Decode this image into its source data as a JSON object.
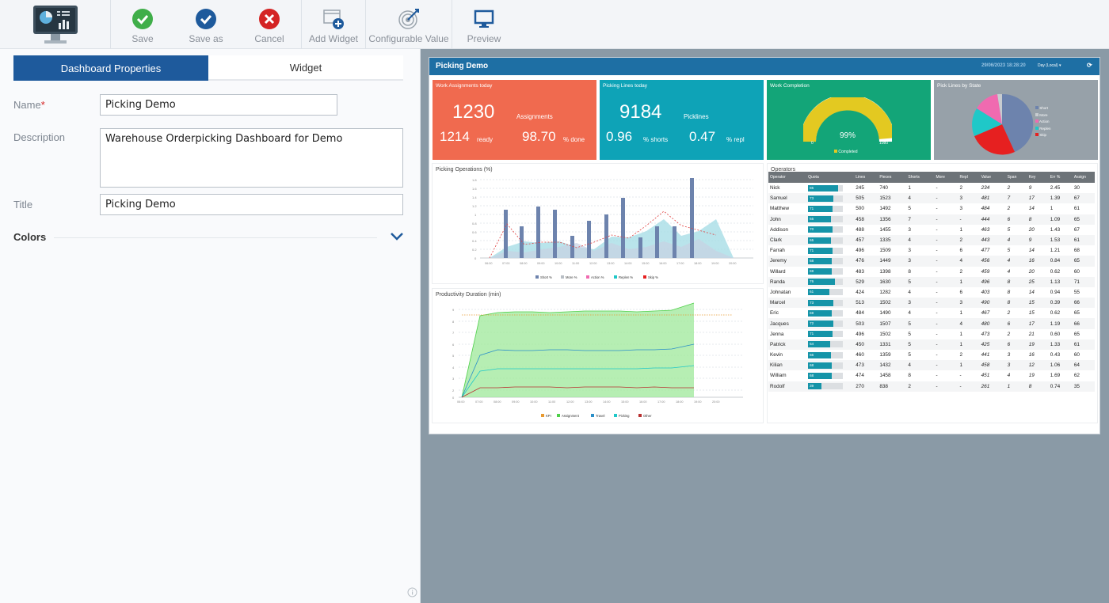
{
  "toolbar": {
    "save_label": "Save",
    "save_as_label": "Save as",
    "cancel_label": "Cancel",
    "add_widget_label": "Add Widget",
    "configurable_value_label": "Configurable Value",
    "preview_label": "Preview"
  },
  "left": {
    "tab_dashboard_properties": "Dashboard Properties",
    "tab_widget": "Widget",
    "name_label": "Name",
    "name_required": "*",
    "name_value": "Picking Demo",
    "description_label": "Description",
    "description_value": "Warehouse Orderpicking Dashboard for Demo",
    "title_label": "Title",
    "title_value": "Picking Demo",
    "colors_label": "Colors"
  },
  "dashboard": {
    "title": "Picking Demo",
    "datetime": "29/06/2023 18:28:20",
    "day_select": "Day (Local)",
    "tiles": {
      "work_assignments": {
        "title": "Work Assignments today",
        "count": "1230",
        "count_label": "Assignments",
        "ready": "1214",
        "ready_label": "ready",
        "done": "98.70",
        "done_label": "% done",
        "color": "#f06a4f"
      },
      "picking_lines": {
        "title": "Picking Lines today",
        "count": "9184",
        "count_label": "Picklines",
        "shorts": "0.96",
        "shorts_label": "% shorts",
        "repl": "0.47",
        "repl_label": "% repl",
        "color": "#0ea3b7"
      },
      "work_completion": {
        "title": "Work Completion",
        "percent": "99%",
        "min": "0",
        "max": "1080",
        "legend": "Completed",
        "color": "#13a578"
      },
      "pick_lines_state": {
        "title": "Pick Lines by State",
        "legend": [
          "Short",
          "More",
          "Action",
          "Replen",
          "Skip"
        ],
        "color": "#97a1a9"
      }
    },
    "picking_ops": {
      "title": "Picking Operations (%)",
      "yticks": [
        "1.8",
        "1.6",
        "1.4",
        "1.2",
        "1",
        "0.8",
        "0.6",
        "0.4",
        "0.2",
        "0"
      ],
      "xticks": [
        "06:00",
        "07:00",
        "08:00",
        "09:00",
        "10:00",
        "11:00",
        "12:00",
        "13:00",
        "14:00",
        "15:00",
        "16:00",
        "17:00",
        "18:00",
        "19:00",
        "20:00"
      ],
      "legend": [
        "Short %",
        "More %",
        "Action %",
        "Replen %",
        "Skip %"
      ]
    },
    "productivity": {
      "title": "Productivity Duration (min)",
      "yticks": [
        "9",
        "8",
        "7",
        "6",
        "5",
        "4",
        "3",
        "2",
        "1",
        "0"
      ],
      "xticks": [
        "06:00",
        "07:00",
        "08:00",
        "09:00",
        "10:00",
        "11:00",
        "12:00",
        "13:00",
        "14:00",
        "15:00",
        "16:00",
        "17:00",
        "18:00",
        "19:00",
        "20:00"
      ],
      "legend": [
        "KPI",
        "Assignment",
        "Travel",
        "Picking",
        "Other"
      ]
    },
    "operators": {
      "title": "Operators",
      "headers": [
        "Operator",
        "Quota",
        "Lines",
        "Pieces",
        "Shorts",
        "More",
        "Repl",
        "Value",
        "Span",
        "Key",
        "Err %",
        "Assign"
      ],
      "rows": [
        [
          "Nick",
          "85",
          "245",
          "740",
          "1",
          "-",
          "2",
          "234",
          "2",
          "9",
          "2.45",
          "30"
        ],
        [
          "Samuel",
          "73",
          "505",
          "1523",
          "4",
          "-",
          "3",
          "481",
          "7",
          "17",
          "1.39",
          "67"
        ],
        [
          "Matthew",
          "71",
          "500",
          "1492",
          "5",
          "-",
          "3",
          "484",
          "2",
          "14",
          "1",
          "61"
        ],
        [
          "John",
          "65",
          "458",
          "1356",
          "7",
          "-",
          "-",
          "444",
          "6",
          "8",
          "1.09",
          "65"
        ],
        [
          "Addison",
          "70",
          "488",
          "1455",
          "3",
          "-",
          "1",
          "463",
          "5",
          "20",
          "1.43",
          "67"
        ],
        [
          "Clark",
          "65",
          "457",
          "1335",
          "4",
          "-",
          "2",
          "443",
          "4",
          "9",
          "1.53",
          "61"
        ],
        [
          "Farrah",
          "71",
          "496",
          "1509",
          "3",
          "-",
          "6",
          "477",
          "5",
          "14",
          "1.21",
          "68"
        ],
        [
          "Jeremy",
          "68",
          "476",
          "1449",
          "3",
          "-",
          "4",
          "456",
          "4",
          "16",
          "0.84",
          "65"
        ],
        [
          "Willard",
          "69",
          "483",
          "1398",
          "8",
          "-",
          "2",
          "459",
          "4",
          "20",
          "0.62",
          "60"
        ],
        [
          "Randa",
          "76",
          "529",
          "1630",
          "5",
          "-",
          "1",
          "496",
          "8",
          "25",
          "1.13",
          "71"
        ],
        [
          "Johnatan",
          "61",
          "424",
          "1282",
          "4",
          "-",
          "6",
          "403",
          "8",
          "14",
          "0.94",
          "55"
        ],
        [
          "Marcel",
          "73",
          "513",
          "1502",
          "3",
          "-",
          "3",
          "490",
          "8",
          "15",
          "0.39",
          "66"
        ],
        [
          "Eric",
          "69",
          "484",
          "1490",
          "4",
          "-",
          "1",
          "467",
          "2",
          "15",
          "0.62",
          "65"
        ],
        [
          "Jacques",
          "72",
          "503",
          "1507",
          "5",
          "-",
          "4",
          "480",
          "6",
          "17",
          "1.19",
          "66"
        ],
        [
          "Jenna",
          "71",
          "496",
          "1502",
          "5",
          "-",
          "1",
          "473",
          "2",
          "21",
          "0.60",
          "65"
        ],
        [
          "Patrick",
          "64",
          "450",
          "1331",
          "5",
          "-",
          "1",
          "425",
          "6",
          "19",
          "1.33",
          "61"
        ],
        [
          "Kevin",
          "66",
          "460",
          "1359",
          "5",
          "-",
          "2",
          "441",
          "3",
          "16",
          "0.43",
          "60"
        ],
        [
          "Kilian",
          "68",
          "473",
          "1432",
          "4",
          "-",
          "1",
          "458",
          "3",
          "12",
          "1.06",
          "64"
        ],
        [
          "William",
          "68",
          "474",
          "1458",
          "8",
          "-",
          "-",
          "451",
          "4",
          "19",
          "1.69",
          "62"
        ],
        [
          "Rodolf",
          "39",
          "270",
          "838",
          "2",
          "-",
          "-",
          "261",
          "1",
          "8",
          "0.74",
          "35"
        ]
      ]
    }
  }
}
